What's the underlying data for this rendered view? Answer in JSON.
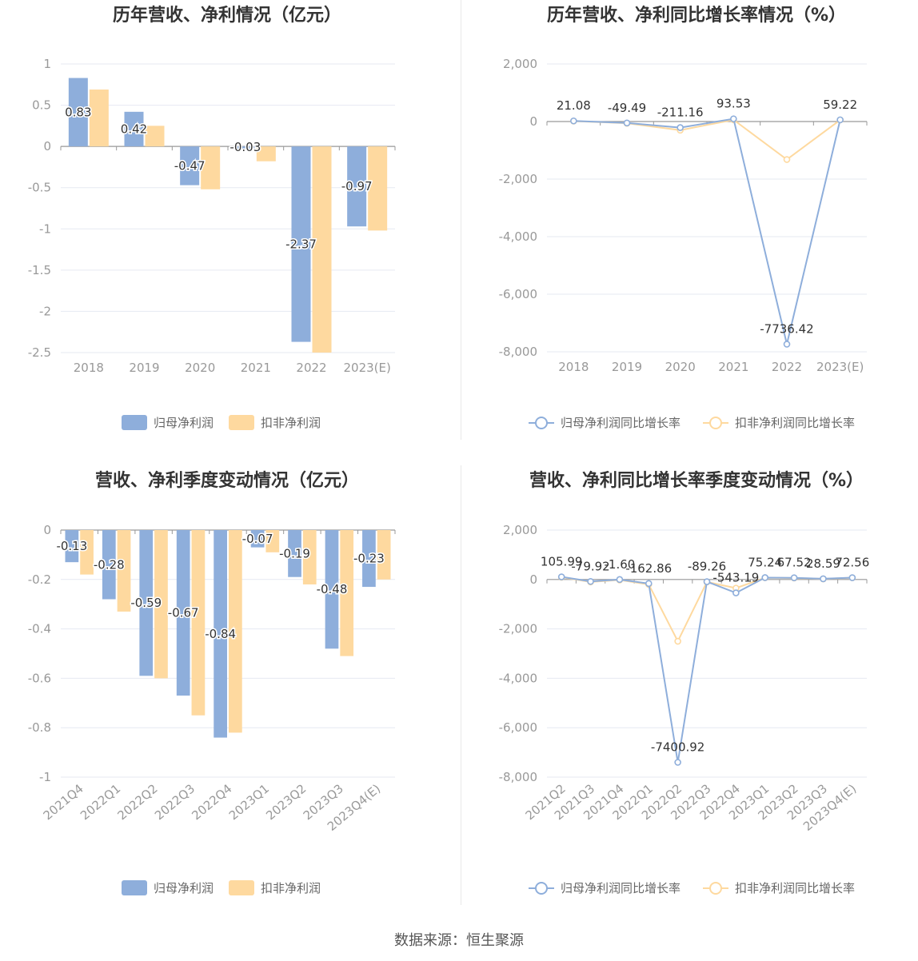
{
  "footer": "数据来源：恒生聚源",
  "colors": {
    "series1": "#8eaedb",
    "series2": "#fed99f",
    "grid": "#e6e9f2",
    "axis": "#999999"
  },
  "chart_data": [
    {
      "type": "bar",
      "title": "历年营收、净利情况（亿元）",
      "categories": [
        "2018",
        "2019",
        "2020",
        "2021",
        "2022",
        "2023(E)"
      ],
      "ylim": [
        -2.5,
        1
      ],
      "yticks": [
        1,
        0.5,
        0,
        -0.5,
        -1,
        -1.5,
        -2,
        -2.5
      ],
      "ytick_labels": [
        "1",
        "0.5",
        "0",
        "-0.5",
        "-1",
        "-1.5",
        "-2",
        "-2.5"
      ],
      "series": [
        {
          "name": "归母净利润",
          "values": [
            0.83,
            0.42,
            -0.47,
            -0.03,
            -2.37,
            -0.97
          ],
          "labels": [
            "0.83",
            "0.42",
            "-0.47",
            "-0.03",
            "-2.37",
            "-0.97"
          ]
        },
        {
          "name": "扣非净利润",
          "values": [
            0.69,
            0.25,
            -0.52,
            -0.18,
            -2.5,
            -1.02
          ]
        }
      ],
      "legend": "bottom",
      "grid": true
    },
    {
      "type": "line",
      "title": "历年营收、净利同比增长率情况（%）",
      "categories": [
        "2018",
        "2019",
        "2020",
        "2021",
        "2022",
        "2023(E)"
      ],
      "ylim": [
        -8000,
        2000
      ],
      "yticks": [
        2000,
        0,
        -2000,
        -4000,
        -6000,
        -8000
      ],
      "ytick_labels": [
        "2,000",
        "0",
        "-2,000",
        "-4,000",
        "-6,000",
        "-8,000"
      ],
      "series": [
        {
          "name": "归母净利润同比增长率",
          "values": [
            21.08,
            -49.49,
            -211.16,
            93.53,
            -7736.42,
            59.22
          ],
          "labels": [
            "21.08",
            "-49.49",
            "-211.16",
            "93.53",
            "-7736.42",
            "59.22"
          ]
        },
        {
          "name": "扣非净利润同比增长率",
          "values": [
            15,
            -60,
            -300,
            60,
            -1320,
            55
          ]
        }
      ],
      "legend": "bottom",
      "grid": true
    },
    {
      "type": "bar",
      "title": "营收、净利季度变动情况（亿元）",
      "categories": [
        "2021Q4",
        "2022Q1",
        "2022Q2",
        "2022Q3",
        "2022Q4",
        "2023Q1",
        "2023Q2",
        "2023Q3",
        "2023Q4(E)"
      ],
      "ylim": [
        -1,
        0
      ],
      "yticks": [
        0,
        -0.2,
        -0.4,
        -0.6,
        -0.8,
        -1
      ],
      "ytick_labels": [
        "0",
        "-0.2",
        "-0.4",
        "-0.6",
        "-0.8",
        "-1"
      ],
      "series": [
        {
          "name": "归母净利润",
          "values": [
            -0.13,
            -0.28,
            -0.59,
            -0.67,
            -0.84,
            -0.07,
            -0.19,
            -0.48,
            -0.23
          ],
          "labels": [
            "-0.13",
            "-0.28",
            "-0.59",
            "-0.67",
            "-0.84",
            "-0.07",
            "-0.19",
            "-0.48",
            "-0.23"
          ]
        },
        {
          "name": "扣非净利润",
          "values": [
            -0.18,
            -0.33,
            -0.6,
            -0.75,
            -0.82,
            -0.09,
            -0.22,
            -0.51,
            -0.2
          ]
        }
      ],
      "legend": "bottom",
      "grid": true
    },
    {
      "type": "line",
      "title": "营收、净利同比增长率季度变动情况（%）",
      "categories": [
        "2021Q2",
        "2021Q3",
        "2021Q4",
        "2022Q1",
        "2022Q2",
        "2022Q3",
        "2022Q4",
        "2023Q1",
        "2023Q2",
        "2023Q3",
        "2023Q4(E)"
      ],
      "ylim": [
        -8000,
        2000
      ],
      "yticks": [
        2000,
        0,
        -2000,
        -4000,
        -6000,
        -8000
      ],
      "ytick_labels": [
        "2,000",
        "0",
        "-2,000",
        "-4,000",
        "-6,000",
        "-8,000"
      ],
      "series": [
        {
          "name": "归母净利润同比增长率",
          "values": [
            105.99,
            -79.92,
            -1.6,
            -162.86,
            -7400.92,
            -89.26,
            -543.19,
            75.24,
            67.52,
            28.59,
            72.56
          ],
          "labels": [
            "105.99",
            "-79.92",
            "-1.60",
            "-162.86",
            "-7400.92",
            "-89.26",
            "-543.19",
            "75.24",
            "67.52",
            "28.59",
            "72.56"
          ]
        },
        {
          "name": "扣非净利润同比增长率",
          "values": [
            90,
            -100,
            -20,
            -200,
            -2500,
            -100,
            -350,
            70,
            60,
            25,
            70
          ]
        }
      ],
      "legend": "bottom",
      "grid": true
    }
  ]
}
